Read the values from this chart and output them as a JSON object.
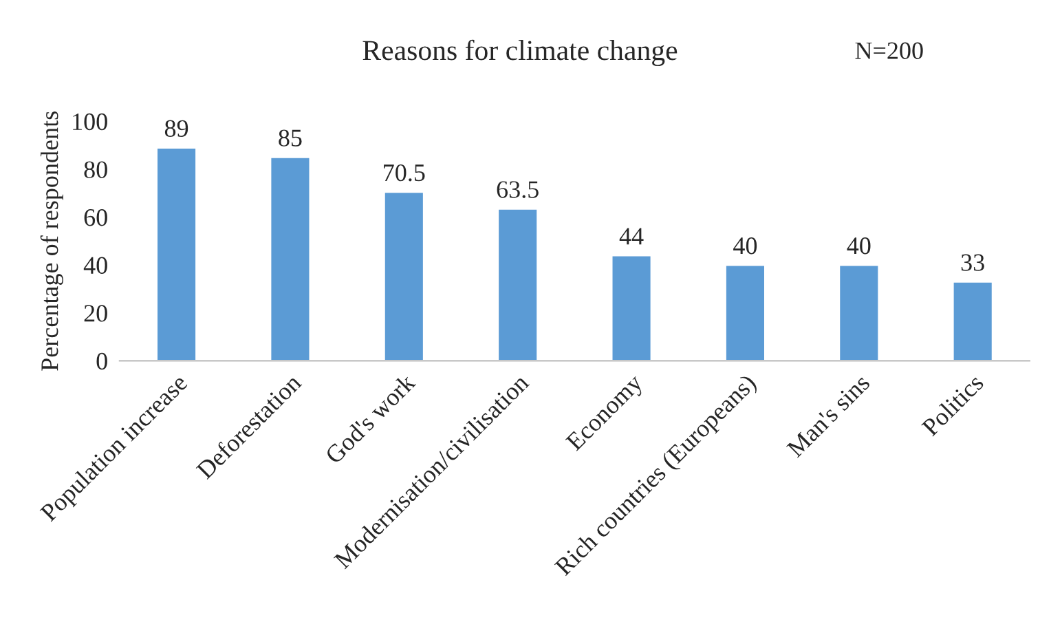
{
  "chart_data": {
    "type": "bar",
    "title": "Reasons for climate change",
    "ylabel": "Percentage of respondents",
    "categories": [
      "Population increase",
      "Deforestation",
      "God's work",
      "Modernisation/civilisation",
      "Economy",
      "Rich countries (Europeans)",
      "Man's sins",
      "Politics"
    ],
    "values": [
      89,
      85,
      70.5,
      63.5,
      44,
      40,
      40,
      33
    ],
    "color": "#5b9bd5",
    "ylim": [
      0,
      100
    ],
    "yticks": [
      0,
      20,
      40,
      60,
      80,
      100
    ],
    "grid": false,
    "data_labels": true,
    "annotations": [
      "N=200"
    ]
  }
}
